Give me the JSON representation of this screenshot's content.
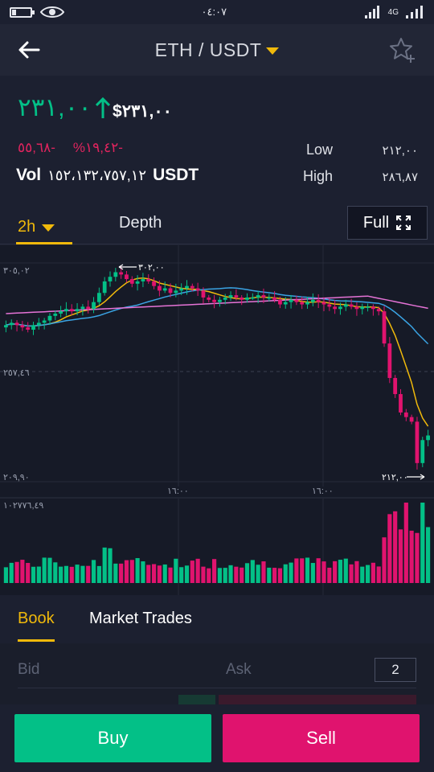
{
  "status": {
    "time": "٠٤:٠٧",
    "network": "4G"
  },
  "header": {
    "pair": "ETH / USDT"
  },
  "ticker": {
    "last_price": "٢٣١,٠٠",
    "usd_price": "$٢٣١,٠٠",
    "change_abs": "٥٥,٦٨-",
    "change_pct": "%١٩,٤٢-",
    "low_label": "Low",
    "low_value": "٢١٢,٠٠",
    "high_label": "High",
    "high_value": "٢٨٦,٨٧",
    "vol_label": "Vol",
    "vol_value": "١٥٢،١٣٢،٧٥٧,١٢",
    "vol_unit": "USDT"
  },
  "chart_tabs": {
    "interval": "2h",
    "depth": "Depth",
    "full": "Full"
  },
  "chart_labels": {
    "y_top": "٣٠٥,٠٢",
    "y_mid": "٢٥٧,٤٦",
    "y_bot": "٢٠٩,٩٠",
    "max_marker": "٣٠٢,٠٠",
    "min_marker": "٢١٢,٠٠",
    "x_tick_1": "١٦:٠٠",
    "x_tick_2": "١٦:٠٠",
    "vol_max": "١٠٢٧٧٦,٤٩"
  },
  "chart_data": {
    "type": "candlestick",
    "y_axis_labels": [
      "٣٠٥,٠٢",
      "٢٥٧,٤٦",
      "٢٠٩,٩٠"
    ],
    "x_axis_labels": [
      "١٦:٠٠",
      "١٦:٠٠"
    ],
    "period_high": 302.0,
    "period_low": 212.0,
    "candles_close": [
      278,
      279,
      278,
      277,
      276,
      278,
      279,
      280,
      282,
      283,
      284,
      285,
      284,
      285,
      286,
      285,
      288,
      292,
      297,
      299,
      301,
      300,
      298,
      296,
      297,
      298,
      297,
      295,
      293,
      294,
      292,
      293,
      294,
      295,
      294,
      293,
      290,
      289,
      288,
      289,
      290,
      291,
      290,
      289,
      290,
      290,
      291,
      290,
      290,
      289,
      287,
      288,
      289,
      288,
      287,
      288,
      289,
      288,
      287,
      286,
      285,
      286,
      287,
      286,
      285,
      286,
      286,
      285,
      284,
      270,
      255,
      248,
      240,
      238,
      236,
      218,
      228,
      230
    ],
    "ma_series": [
      {
        "color": "#f0b90b"
      },
      {
        "color": "#3aa3e3"
      },
      {
        "color": "#e573d6"
      }
    ],
    "volume_max": 102776.49
  },
  "book": {
    "tab_book": "Book",
    "tab_trades": "Market Trades",
    "bid": "Bid",
    "ask": "Ask",
    "depth_value": "2"
  },
  "actions": {
    "buy": "Buy",
    "sell": "Sell"
  },
  "colors": {
    "up": "#03c087",
    "down": "#e0136e",
    "accent": "#f0b90b"
  }
}
